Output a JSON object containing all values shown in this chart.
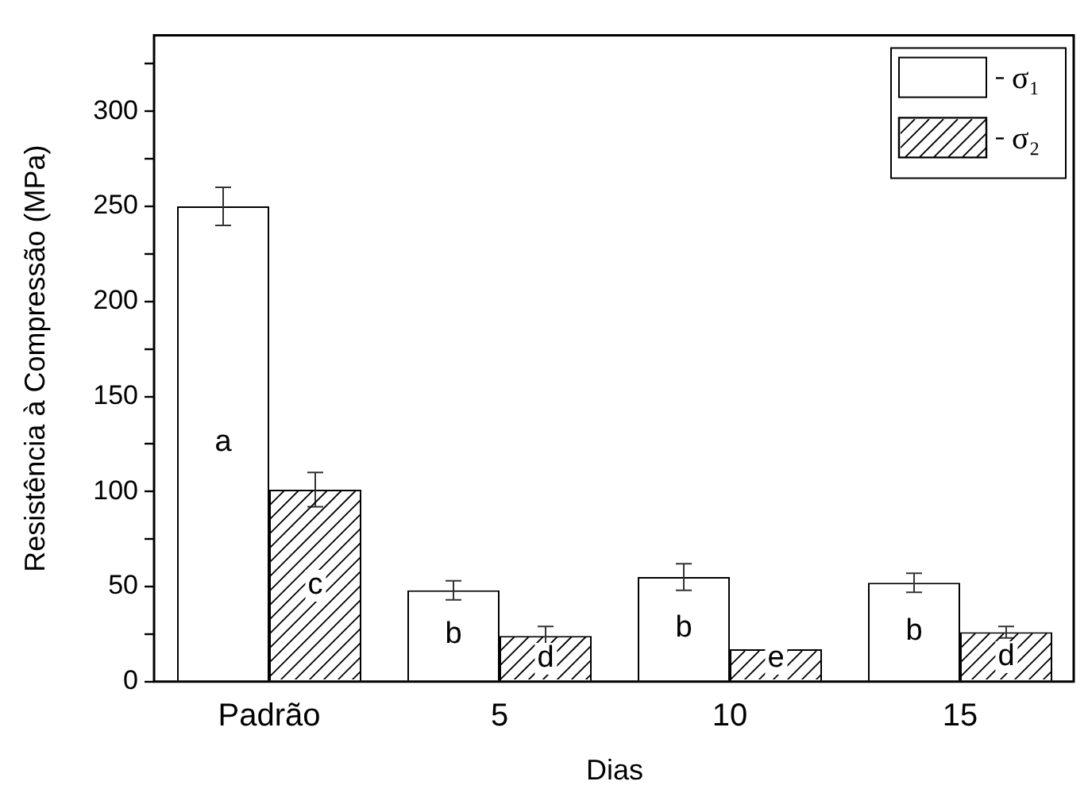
{
  "chart_data": {
    "type": "bar",
    "xlabel": "Dias",
    "ylabel": "Resistência à Compressão (MPa)",
    "categories": [
      "Padrão",
      "5",
      "10",
      "15"
    ],
    "series": [
      {
        "name": "σ₁",
        "color": "#ffffff",
        "values": [
          250,
          48,
          55,
          52
        ],
        "errors": [
          10,
          5,
          7,
          5
        ],
        "value_labels": [
          "a",
          "b",
          "b",
          "b"
        ]
      },
      {
        "name": "σ₂",
        "color": "#ffffff",
        "values": [
          101,
          24,
          17,
          26
        ],
        "errors": [
          9,
          5,
          3,
          3
        ],
        "value_labels": [
          "c",
          "d",
          "e",
          "d"
        ]
      }
    ],
    "ylim": [
      0,
      340
    ],
    "yticks": [
      0,
      {
        "value": 25,
        "label": null
      },
      50,
      {
        "value": 75,
        "label": null
      },
      100,
      {
        "value": 125,
        "label": null
      },
      150,
      {
        "value": 175,
        "label": null
      },
      200,
      {
        "value": 225,
        "label": null
      },
      250,
      {
        "value": 275,
        "label": null
      },
      300,
      {
        "value": 325,
        "label": null
      }
    ],
    "grid": false,
    "legend": "top right"
  }
}
